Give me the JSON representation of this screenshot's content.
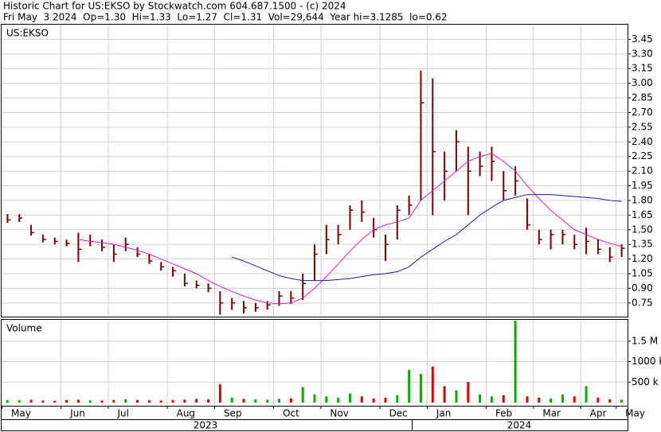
{
  "chart_data": {
    "type": "ohlc",
    "title": "Historic Chart for US:EKSO by Stockwatch.com 604.687.1500 - (c) 2024",
    "subtitle": "Fri May  3 2024  Op=1.30  Hi=1.33  Lo=1.27  Cl=1.31  Vol=29,644  Year hi=3.1285  lo=0.62",
    "symbol_label": "US:EKSO",
    "volume_label": "Volume",
    "year_labels": [
      "2023",
      "2024"
    ],
    "categories": [
      "May",
      null,
      null,
      null,
      null,
      "Jun",
      null,
      null,
      null,
      "Jul",
      null,
      null,
      null,
      null,
      "Aug",
      null,
      null,
      null,
      "Sep",
      null,
      null,
      null,
      null,
      "Oct",
      null,
      null,
      null,
      "Nov",
      null,
      null,
      null,
      null,
      "Dec",
      null,
      null,
      null,
      "Jan",
      null,
      null,
      null,
      null,
      "Feb",
      null,
      null,
      null,
      "Mar",
      null,
      null,
      null,
      "Apr",
      null,
      null,
      "May"
    ],
    "high": [
      1.66,
      1.66,
      1.55,
      1.45,
      1.42,
      1.4,
      1.47,
      1.45,
      1.4,
      1.35,
      1.42,
      1.32,
      1.25,
      1.17,
      1.12,
      1.05,
      0.98,
      0.95,
      0.87,
      0.8,
      0.77,
      0.75,
      0.77,
      0.87,
      0.87,
      1.05,
      1.35,
      1.55,
      1.55,
      1.75,
      1.8,
      1.62,
      1.45,
      1.75,
      1.85,
      3.13,
      3.05,
      2.3,
      2.52,
      2.35,
      2.3,
      2.35,
      2.1,
      2.15,
      1.82,
      1.5,
      1.5,
      1.5,
      1.45,
      1.52,
      1.4,
      1.32,
      1.35
    ],
    "low": [
      1.57,
      1.58,
      1.44,
      1.37,
      1.35,
      1.33,
      1.17,
      1.33,
      1.28,
      1.17,
      1.28,
      1.22,
      1.15,
      1.08,
      1.02,
      0.92,
      0.9,
      0.86,
      0.63,
      0.68,
      0.64,
      0.66,
      0.68,
      0.72,
      0.74,
      0.78,
      0.98,
      1.25,
      1.35,
      1.5,
      1.58,
      1.42,
      1.18,
      1.4,
      1.65,
      1.8,
      1.65,
      1.8,
      2.1,
      1.65,
      2.05,
      2.0,
      1.8,
      1.85,
      1.5,
      1.35,
      1.3,
      1.35,
      1.3,
      1.25,
      1.25,
      1.17,
      1.22
    ],
    "close": [
      1.6,
      1.62,
      1.47,
      1.4,
      1.38,
      1.36,
      1.3,
      1.38,
      1.32,
      1.25,
      1.35,
      1.25,
      1.18,
      1.12,
      1.08,
      0.95,
      0.93,
      0.9,
      0.75,
      0.75,
      0.7,
      0.7,
      0.73,
      0.82,
      0.8,
      0.95,
      1.25,
      1.4,
      1.45,
      1.7,
      1.68,
      1.5,
      1.35,
      1.7,
      1.75,
      2.8,
      2.3,
      2.1,
      2.4,
      2.1,
      2.15,
      2.2,
      1.9,
      2.0,
      1.55,
      1.4,
      1.45,
      1.45,
      1.35,
      1.38,
      1.3,
      1.22,
      1.31
    ],
    "color": "#7a0000",
    "moving_averages": [
      {
        "color": "#e020c0",
        "values": [
          null,
          null,
          null,
          null,
          null,
          null,
          1.4,
          1.38,
          1.37,
          1.35,
          1.32,
          1.29,
          1.25,
          1.2,
          1.15,
          1.1,
          1.05,
          0.98,
          0.92,
          0.87,
          0.82,
          0.78,
          0.75,
          0.74,
          0.75,
          0.8,
          0.9,
          1.02,
          1.15,
          1.28,
          1.4,
          1.5,
          1.55,
          1.58,
          1.62,
          1.8,
          1.9,
          2.0,
          2.1,
          2.2,
          2.25,
          2.28,
          2.2,
          2.1,
          1.95,
          1.82,
          1.7,
          1.6,
          1.5,
          1.45,
          1.4,
          1.36,
          1.33
        ]
      },
      {
        "color": "#1a1aa0",
        "values": [
          null,
          null,
          null,
          null,
          null,
          null,
          null,
          null,
          null,
          null,
          null,
          null,
          null,
          null,
          null,
          null,
          null,
          null,
          null,
          1.22,
          1.18,
          1.13,
          1.08,
          1.03,
          1.0,
          0.98,
          0.98,
          0.98,
          0.99,
          1.0,
          1.02,
          1.04,
          1.05,
          1.07,
          1.12,
          1.22,
          1.3,
          1.38,
          1.45,
          1.55,
          1.65,
          1.73,
          1.8,
          1.83,
          1.86,
          1.86,
          1.86,
          1.85,
          1.84,
          1.83,
          1.82,
          1.8,
          1.79
        ]
      }
    ],
    "ylim": [
      0.61,
      3.6
    ],
    "yticks": [
      0.75,
      {
        "value": 0.9,
        "label": "0.90"
      },
      1.05,
      {
        "value": 1.2,
        "label": "1.20"
      },
      1.35,
      {
        "value": 1.5,
        "label": "1.50"
      },
      1.65,
      {
        "value": 1.8,
        "label": "1.80"
      },
      1.95,
      {
        "value": 2.1,
        "label": "2.10"
      },
      2.25,
      {
        "value": 2.4,
        "label": "2.40"
      },
      2.55,
      {
        "value": 2.7,
        "label": "2.70"
      },
      2.85,
      {
        "value": 3.0,
        "label": "3.00"
      },
      3.15,
      {
        "value": 3.3,
        "label": "3.30"
      },
      3.45
    ],
    "volume": [
      60000,
      55000,
      70000,
      50000,
      45000,
      60000,
      70000,
      55000,
      50000,
      60000,
      80000,
      60000,
      55000,
      50000,
      60000,
      70000,
      90000,
      80000,
      450000,
      120000,
      90000,
      80000,
      70000,
      90000,
      100000,
      380000,
      200000,
      150000,
      120000,
      220000,
      150000,
      100000,
      120000,
      180000,
      800000,
      700000,
      880000,
      400000,
      300000,
      500000,
      200000,
      150000,
      180000,
      2000000,
      150000,
      120000,
      100000,
      200000,
      150000,
      400000,
      120000,
      80000,
      70000
    ],
    "up_color": "#00b000",
    "down_color": "#e00000",
    "volume_ylim": [
      0,
      2020000
    ],
    "volume_ticks": [
      {
        "value": 500000,
        "label": "500 k"
      },
      {
        "value": 1000000,
        "label": "1000 k"
      },
      {
        "value": 1500000,
        "label": "1.5 M"
      }
    ],
    "grid": true
  }
}
